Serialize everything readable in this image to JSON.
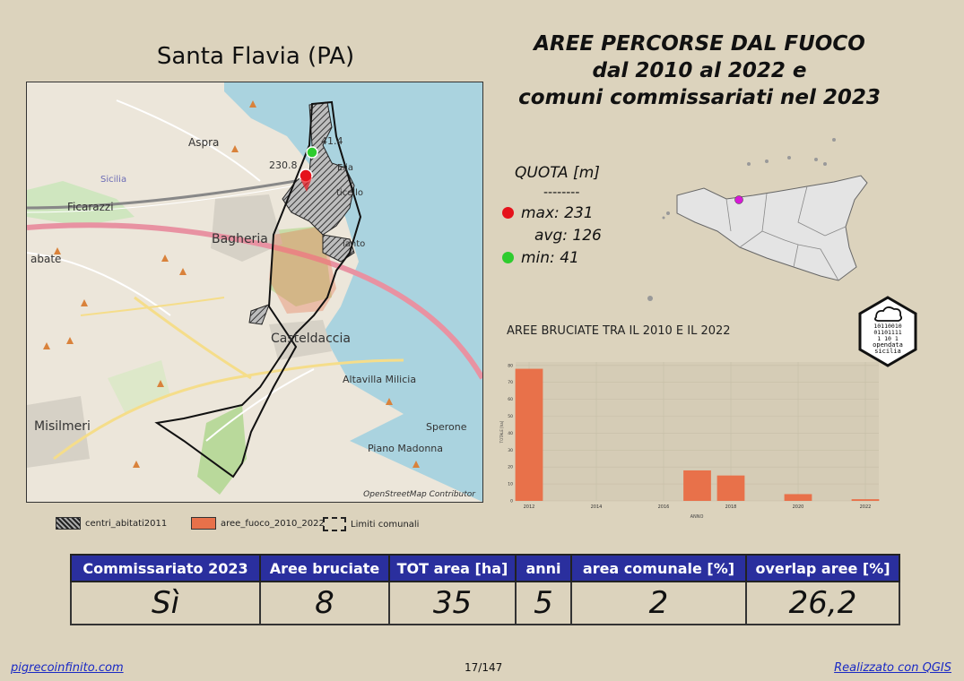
{
  "place_title": "Santa Flavia (PA)",
  "main_title": [
    "AREE PERCORSE DAL FUOCO",
    "dal 2010 al 2022 e",
    "comuni commissariati nel 2023"
  ],
  "map": {
    "labels": {
      "aspra": "Aspra",
      "ficarazzi": "Ficarazzi",
      "bagheria": "Bagheria",
      "abate": "abate",
      "casteldaccia": "Casteldaccia",
      "altavilla": "Altavilla Milicia",
      "misilmeri": "Misilmeri",
      "sperone": "Sperone",
      "piano_madonna": "Piano Madonna",
      "sicilia": "Sicilia",
      "elia": "Elia",
      "solanto": "lanto",
      "porticello": "ticello"
    },
    "point_max_label": "230.8",
    "point_min_label": "41.4",
    "credit": "OpenStreetMap Contributor"
  },
  "legend": {
    "centri": "centri_abitati2011",
    "aree": "aree_fuoco_2010_2022",
    "limiti": "Limiti comunali"
  },
  "quota": {
    "title": "QUOTA [m]",
    "separator": "--------",
    "max": "max: 231",
    "avg": "avg: 126",
    "min": "min: 41",
    "colors": {
      "max": "#e5121b",
      "min": "#2ecc2e"
    }
  },
  "chart_title": "AREE BRUCIATE TRA IL 2010 E IL 2022",
  "chart_data": {
    "type": "bar",
    "x": [
      2012,
      2017,
      2018,
      2020,
      2022
    ],
    "values": [
      78,
      18,
      15,
      4,
      1
    ],
    "xticks": [
      "2012",
      "2014",
      "2016",
      "2018",
      "2020",
      "2022"
    ],
    "yticks": [
      "0",
      "10",
      "20",
      "30",
      "40",
      "50",
      "60",
      "70",
      "80"
    ],
    "xlabel": "ANNO",
    "ylabel": "TOTALE [ha]",
    "xlim": [
      2011.6,
      2022.4
    ],
    "ylim": [
      0,
      82
    ],
    "color": "#e8714a"
  },
  "logo": {
    "bits": [
      "10110010",
      "01101111",
      "1  10 1"
    ],
    "line1": "opendata",
    "line2": "sicilia"
  },
  "table": {
    "headers": [
      "Commissariato 2023",
      "Aree bruciate",
      "TOT area [ha]",
      "anni",
      "area comunale [%]",
      "overlap aree [%]"
    ],
    "values": [
      "Sì",
      "8",
      "35",
      "5",
      "2",
      "26,2"
    ]
  },
  "footer": {
    "left": "pigrecoinfinito.com",
    "center": "17/147",
    "right": "Realizzato con QGIS"
  }
}
